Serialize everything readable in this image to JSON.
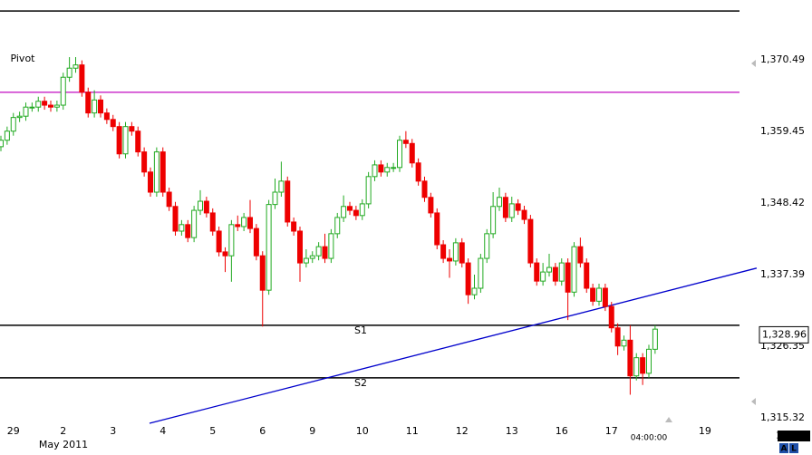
{
  "chart_data": {
    "type": "candlestick",
    "categories": [
      null,
      null,
      "29",
      null,
      null,
      null,
      null,
      null,
      null,
      null,
      "2",
      null,
      null,
      null,
      null,
      null,
      null,
      null,
      "3",
      null,
      null,
      null,
      null,
      null,
      null,
      null,
      "4",
      null,
      null,
      null,
      null,
      null,
      null,
      null,
      "5",
      null,
      null,
      null,
      null,
      null,
      null,
      null,
      "6",
      null,
      null,
      null,
      null,
      null,
      null,
      null,
      "9",
      null,
      null,
      null,
      null,
      null,
      null,
      null,
      "10",
      null,
      null,
      null,
      null,
      null,
      null,
      null,
      "11",
      null,
      null,
      null,
      null,
      null,
      null,
      null,
      "12",
      null,
      null,
      null,
      null,
      null,
      null,
      null,
      "13",
      null,
      null,
      null,
      null,
      null,
      null,
      null,
      "16",
      null,
      null,
      null,
      null,
      null,
      null,
      null,
      "17",
      null,
      null,
      null,
      null,
      null,
      "04:00:00",
      null,
      null,
      null,
      null,
      null,
      null,
      null,
      null,
      "19",
      null,
      null,
      null,
      null,
      null
    ],
    "x_sublabel": "May 2011",
    "open": [
      1357.1,
      1358.1,
      1359.5,
      1361.6,
      1361.8,
      1363.2,
      1363.2,
      1364.1,
      1363.5,
      1363.2,
      1363.5,
      1367.8,
      1369.2,
      1369.7,
      1365.5,
      1362.3,
      1364.3,
      1362.3,
      1361.3,
      1360.2,
      1356.0,
      1360.2,
      1359.5,
      1356.3,
      1353.2,
      1350.1,
      1356.3,
      1350.1,
      1347.9,
      1344.1,
      1345.1,
      1343.1,
      1347.3,
      1348.7,
      1346.9,
      1344.1,
      1340.9,
      1340.3,
      1345.1,
      1344.8,
      1346.2,
      1344.5,
      1340.3,
      1335.0,
      1348.2,
      1350.1,
      1351.8,
      1345.5,
      1344.1,
      1339.2,
      1339.9,
      1340.3,
      1341.7,
      1339.9,
      1343.7,
      1346.2,
      1347.9,
      1347.3,
      1346.5,
      1348.3,
      1352.5,
      1354.3,
      1353.2,
      1353.9,
      1353.9,
      1358.1,
      1357.6,
      1354.6,
      1351.8,
      1349.3,
      1346.9,
      1342.0,
      1339.9,
      1339.5,
      1342.3,
      1339.2,
      1334.3,
      1335.3,
      1339.9,
      1343.7,
      1347.9,
      1349.3,
      1346.2,
      1348.3,
      1347.3,
      1345.9,
      1339.2,
      1336.4,
      1337.8,
      1338.5,
      1336.4,
      1339.2,
      1334.7,
      1341.7,
      1339.2,
      1335.3,
      1333.3,
      1335.3,
      1332.5,
      1329.2,
      1326.4,
      1327.3,
      1321.8,
      1324.6,
      1322.2,
      1325.9,
      null,
      null,
      null,
      null,
      null,
      null,
      null,
      null,
      null,
      null,
      null,
      null,
      null
    ],
    "high": [
      1358.8,
      1360.2,
      1362.3,
      1362.5,
      1363.9,
      1363.9,
      1364.8,
      1364.8,
      1364.2,
      1364.2,
      1368.5,
      1370.9,
      1370.9,
      1370.4,
      1366.2,
      1365.8,
      1365.0,
      1363.0,
      1362.0,
      1360.9,
      1360.9,
      1360.9,
      1360.2,
      1357.0,
      1353.9,
      1357.0,
      1357.0,
      1350.8,
      1348.6,
      1345.8,
      1345.8,
      1348.0,
      1350.4,
      1349.4,
      1347.6,
      1344.8,
      1341.6,
      1345.8,
      1346.5,
      1346.9,
      1348.9,
      1345.2,
      1341.0,
      1348.9,
      1352.2,
      1354.8,
      1352.5,
      1346.2,
      1344.8,
      1341.3,
      1341.0,
      1342.4,
      1343.7,
      1344.4,
      1346.9,
      1349.6,
      1348.6,
      1348.0,
      1349.0,
      1353.2,
      1355.0,
      1355.0,
      1354.6,
      1354.6,
      1358.8,
      1359.5,
      1358.3,
      1355.3,
      1352.5,
      1350.0,
      1347.6,
      1342.7,
      1341.3,
      1343.0,
      1343.0,
      1339.9,
      1337.4,
      1340.6,
      1344.4,
      1350.1,
      1350.8,
      1350.0,
      1349.4,
      1349.0,
      1348.0,
      1346.6,
      1339.9,
      1339.2,
      1340.6,
      1339.2,
      1339.9,
      1339.9,
      1342.4,
      1343.1,
      1339.9,
      1336.0,
      1336.0,
      1336.0,
      1333.2,
      1329.9,
      1328.0,
      1329.6,
      1325.3,
      1325.3,
      1326.6,
      1329.6,
      null,
      null,
      null,
      null,
      null,
      null,
      null,
      null,
      null,
      null,
      null,
      null,
      null
    ],
    "low": [
      1356.4,
      1357.4,
      1358.8,
      1360.9,
      1361.1,
      1362.5,
      1362.5,
      1362.8,
      1362.5,
      1362.5,
      1362.8,
      1367.1,
      1368.5,
      1364.8,
      1361.6,
      1361.6,
      1361.6,
      1360.6,
      1359.5,
      1355.3,
      1355.3,
      1358.8,
      1355.6,
      1352.5,
      1349.4,
      1349.4,
      1349.4,
      1347.2,
      1343.4,
      1343.4,
      1342.4,
      1342.4,
      1346.6,
      1346.2,
      1343.4,
      1340.2,
      1337.8,
      1336.3,
      1344.1,
      1344.1,
      1343.8,
      1339.6,
      1329.4,
      1334.3,
      1347.5,
      1349.4,
      1344.8,
      1343.4,
      1336.3,
      1338.5,
      1339.2,
      1339.6,
      1339.2,
      1339.2,
      1343.0,
      1345.5,
      1346.6,
      1345.8,
      1345.8,
      1347.6,
      1351.8,
      1352.5,
      1352.5,
      1353.2,
      1353.2,
      1356.9,
      1353.9,
      1351.1,
      1348.6,
      1346.2,
      1341.3,
      1339.2,
      1336.9,
      1338.8,
      1338.5,
      1332.9,
      1333.6,
      1334.6,
      1339.2,
      1343.0,
      1347.2,
      1345.5,
      1345.5,
      1346.6,
      1345.2,
      1338.5,
      1335.7,
      1335.7,
      1337.1,
      1335.7,
      1335.7,
      1330.4,
      1334.0,
      1338.5,
      1334.6,
      1332.6,
      1332.6,
      1331.8,
      1328.5,
      1325.0,
      1325.7,
      1318.9,
      1321.1,
      1320.4,
      1321.5,
      1325.2,
      null,
      null,
      null,
      null,
      null,
      null,
      null,
      null,
      null,
      null,
      null,
      null,
      null
    ],
    "close": [
      1358.1,
      1359.5,
      1361.6,
      1361.8,
      1363.2,
      1363.2,
      1364.1,
      1363.5,
      1363.2,
      1363.5,
      1367.8,
      1369.2,
      1369.7,
      1365.5,
      1362.3,
      1364.3,
      1362.3,
      1361.3,
      1360.2,
      1356.0,
      1360.2,
      1359.5,
      1356.3,
      1353.2,
      1350.1,
      1356.3,
      1350.1,
      1347.9,
      1344.1,
      1345.1,
      1343.1,
      1347.3,
      1348.7,
      1346.9,
      1344.1,
      1340.9,
      1340.3,
      1345.1,
      1344.8,
      1346.2,
      1344.5,
      1340.3,
      1335.0,
      1348.2,
      1350.1,
      1351.8,
      1345.5,
      1344.1,
      1339.2,
      1339.9,
      1340.3,
      1341.7,
      1339.9,
      1343.7,
      1346.2,
      1347.9,
      1347.3,
      1346.5,
      1348.3,
      1352.5,
      1354.3,
      1353.2,
      1353.9,
      1353.9,
      1358.1,
      1357.6,
      1354.6,
      1351.8,
      1349.3,
      1346.9,
      1342.0,
      1339.9,
      1339.5,
      1342.3,
      1339.2,
      1334.3,
      1335.3,
      1339.9,
      1343.7,
      1347.9,
      1349.3,
      1346.2,
      1348.3,
      1347.3,
      1345.9,
      1339.2,
      1336.4,
      1337.8,
      1338.5,
      1336.4,
      1339.2,
      1334.7,
      1341.7,
      1339.2,
      1335.3,
      1333.3,
      1335.3,
      1332.5,
      1329.2,
      1326.4,
      1327.3,
      1321.8,
      1324.6,
      1322.2,
      1325.9,
      1329.0,
      null,
      null,
      null,
      null,
      null,
      null,
      null,
      null,
      null,
      null,
      null,
      null,
      null
    ],
    "up_color": "#22aa22",
    "down_color": "#ee0000",
    "ylim": [
      1314.5,
      1379.7
    ],
    "yticks": [
      {
        "value": 1370.49,
        "label": "1,370.49"
      },
      {
        "value": 1359.45,
        "label": "1,359.45"
      },
      {
        "value": 1348.42,
        "label": "1,348.42"
      },
      {
        "value": 1337.39,
        "label": "1,337.39"
      },
      {
        "value": 1326.35,
        "label": "1,326.35"
      },
      {
        "value": 1315.32,
        "label": "1,315.32"
      }
    ],
    "levels": [
      {
        "value": 1378.0,
        "color": "#000000"
      },
      {
        "name": "Pivot",
        "value": 1365.5,
        "color": "#cc33cc"
      },
      {
        "name": "S1",
        "value": 1329.6,
        "color": "#000000"
      },
      {
        "name": "S2",
        "value": 1321.5,
        "color": "#000000"
      }
    ],
    "trendline": {
      "x": [
        23.85,
        121.3
      ],
      "values": [
        1314.5,
        1338.4
      ],
      "color": "#0000cc"
    },
    "price_label": {
      "value": 1328.96,
      "label": "1,328.96"
    },
    "scale_step_label": "11.03",
    "corner_buttons": [
      "A",
      "L"
    ]
  }
}
